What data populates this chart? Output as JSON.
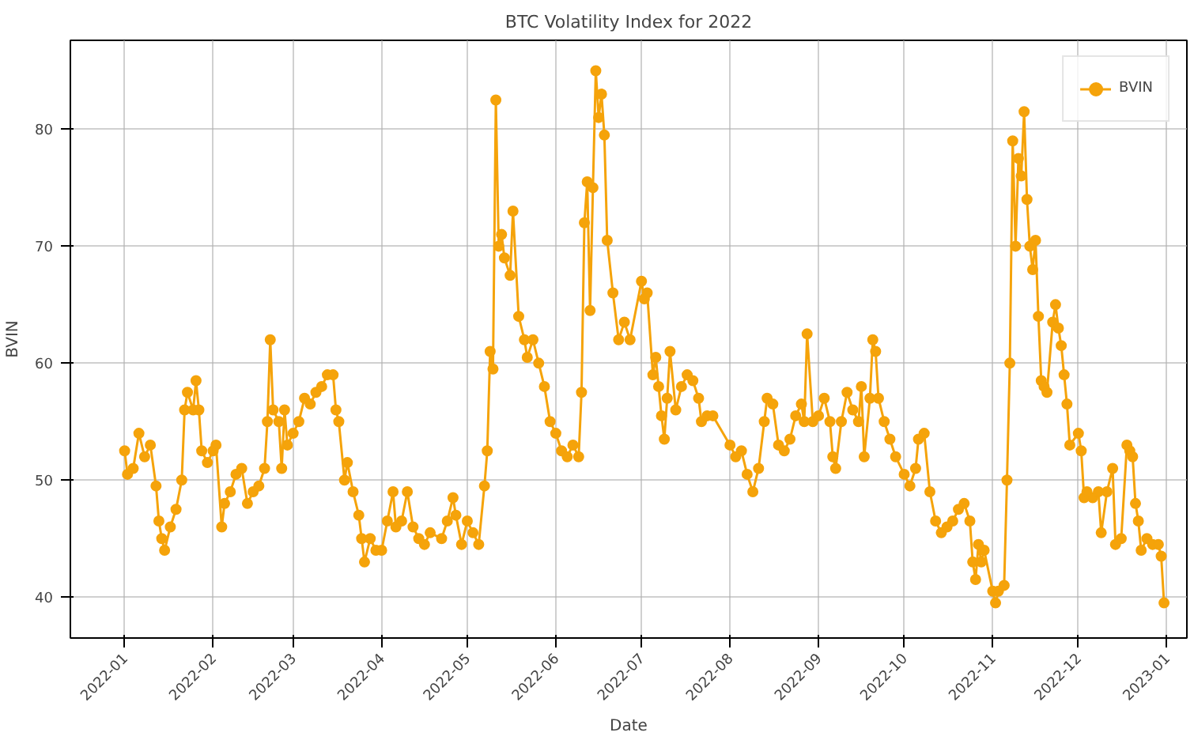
{
  "chart_data": {
    "type": "line",
    "title": "BTC Volatility Index for 2022",
    "xlabel": "Date",
    "ylabel": "BVIN",
    "xlim": [
      "2021-12-13",
      "2023-01-08"
    ],
    "xticks": [
      {
        "value": "2022-01-01",
        "label": "2022-01"
      },
      {
        "value": "2022-02-01",
        "label": "2022-02"
      },
      {
        "value": "2022-03-01",
        "label": "2022-03"
      },
      {
        "value": "2022-04-01",
        "label": "2022-04"
      },
      {
        "value": "2022-05-01",
        "label": "2022-05"
      },
      {
        "value": "2022-06-01",
        "label": "2022-06"
      },
      {
        "value": "2022-07-01",
        "label": "2022-07"
      },
      {
        "value": "2022-08-01",
        "label": "2022-08"
      },
      {
        "value": "2022-09-01",
        "label": "2022-09"
      },
      {
        "value": "2022-10-01",
        "label": "2022-10"
      },
      {
        "value": "2022-11-01",
        "label": "2022-11"
      },
      {
        "value": "2022-12-01",
        "label": "2022-12"
      },
      {
        "value": "2023-01-01",
        "label": "2023-01"
      }
    ],
    "ylim": [
      36.5,
      87.6
    ],
    "yticks": [
      40,
      50,
      60,
      70,
      80
    ],
    "grid": true,
    "legend": "top right",
    "marker": "circle",
    "line_style": "solid",
    "series": [
      {
        "name": "BVIN",
        "color": "#f5a30a",
        "x": [
          "2022-01-01",
          "2022-01-02",
          "2022-01-04",
          "2022-01-06",
          "2022-01-08",
          "2022-01-10",
          "2022-01-12",
          "2022-01-13",
          "2022-01-14",
          "2022-01-15",
          "2022-01-17",
          "2022-01-19",
          "2022-01-21",
          "2022-01-22",
          "2022-01-23",
          "2022-01-25",
          "2022-01-26",
          "2022-01-27",
          "2022-01-28",
          "2022-01-30",
          "2022-02-01",
          "2022-02-02",
          "2022-02-04",
          "2022-02-05",
          "2022-02-07",
          "2022-02-09",
          "2022-02-11",
          "2022-02-13",
          "2022-02-15",
          "2022-02-17",
          "2022-02-19",
          "2022-02-20",
          "2022-02-21",
          "2022-02-22",
          "2022-02-24",
          "2022-02-25",
          "2022-02-26",
          "2022-02-27",
          "2022-03-01",
          "2022-03-03",
          "2022-03-05",
          "2022-03-07",
          "2022-03-09",
          "2022-03-11",
          "2022-03-13",
          "2022-03-15",
          "2022-03-16",
          "2022-03-17",
          "2022-03-19",
          "2022-03-20",
          "2022-03-22",
          "2022-03-24",
          "2022-03-25",
          "2022-03-26",
          "2022-03-28",
          "2022-03-30",
          "2022-04-01",
          "2022-04-03",
          "2022-04-05",
          "2022-04-06",
          "2022-04-08",
          "2022-04-10",
          "2022-04-12",
          "2022-04-14",
          "2022-04-16",
          "2022-04-18",
          "2022-04-22",
          "2022-04-24",
          "2022-04-26",
          "2022-04-27",
          "2022-04-29",
          "2022-05-01",
          "2022-05-03",
          "2022-05-05",
          "2022-05-07",
          "2022-05-08",
          "2022-05-09",
          "2022-05-10",
          "2022-05-11",
          "2022-05-12",
          "2022-05-13",
          "2022-05-14",
          "2022-05-16",
          "2022-05-17",
          "2022-05-19",
          "2022-05-21",
          "2022-05-22",
          "2022-05-24",
          "2022-05-26",
          "2022-05-28",
          "2022-05-30",
          "2022-06-01",
          "2022-06-03",
          "2022-06-05",
          "2022-06-07",
          "2022-06-09",
          "2022-06-10",
          "2022-06-11",
          "2022-06-12",
          "2022-06-13",
          "2022-06-14",
          "2022-06-15",
          "2022-06-16",
          "2022-06-17",
          "2022-06-18",
          "2022-06-19",
          "2022-06-21",
          "2022-06-23",
          "2022-06-25",
          "2022-06-27",
          "2022-07-01",
          "2022-07-02",
          "2022-07-03",
          "2022-07-05",
          "2022-07-06",
          "2022-07-07",
          "2022-07-08",
          "2022-07-09",
          "2022-07-10",
          "2022-07-11",
          "2022-07-13",
          "2022-07-15",
          "2022-07-17",
          "2022-07-19",
          "2022-07-21",
          "2022-07-22",
          "2022-07-24",
          "2022-07-26",
          "2022-08-01",
          "2022-08-03",
          "2022-08-05",
          "2022-08-07",
          "2022-08-09",
          "2022-08-11",
          "2022-08-13",
          "2022-08-14",
          "2022-08-16",
          "2022-08-18",
          "2022-08-20",
          "2022-08-22",
          "2022-08-24",
          "2022-08-26",
          "2022-08-27",
          "2022-08-28",
          "2022-08-30",
          "2022-09-01",
          "2022-09-03",
          "2022-09-05",
          "2022-09-06",
          "2022-09-07",
          "2022-09-09",
          "2022-09-11",
          "2022-09-13",
          "2022-09-15",
          "2022-09-16",
          "2022-09-17",
          "2022-09-19",
          "2022-09-20",
          "2022-09-21",
          "2022-09-22",
          "2022-09-24",
          "2022-09-26",
          "2022-09-28",
          "2022-10-01",
          "2022-10-03",
          "2022-10-05",
          "2022-10-06",
          "2022-10-08",
          "2022-10-10",
          "2022-10-12",
          "2022-10-14",
          "2022-10-16",
          "2022-10-18",
          "2022-10-20",
          "2022-10-22",
          "2022-10-24",
          "2022-10-25",
          "2022-10-26",
          "2022-10-27",
          "2022-10-28",
          "2022-10-29",
          "2022-11-01",
          "2022-11-02",
          "2022-11-03",
          "2022-11-05",
          "2022-11-06",
          "2022-11-07",
          "2022-11-08",
          "2022-11-09",
          "2022-11-10",
          "2022-11-11",
          "2022-11-12",
          "2022-11-13",
          "2022-11-14",
          "2022-11-15",
          "2022-11-16",
          "2022-11-17",
          "2022-11-18",
          "2022-11-19",
          "2022-11-20",
          "2022-11-22",
          "2022-11-23",
          "2022-11-24",
          "2022-11-25",
          "2022-11-26",
          "2022-11-27",
          "2022-11-28",
          "2022-12-01",
          "2022-12-02",
          "2022-12-03",
          "2022-12-04",
          "2022-12-06",
          "2022-12-08",
          "2022-12-09",
          "2022-12-11",
          "2022-12-13",
          "2022-12-14",
          "2022-12-16",
          "2022-12-18",
          "2022-12-19",
          "2022-12-20",
          "2022-12-21",
          "2022-12-22",
          "2022-12-23",
          "2022-12-25",
          "2022-12-27",
          "2022-12-29",
          "2022-12-30",
          "2022-12-31"
        ],
        "values": [
          52.5,
          50.5,
          51,
          54,
          52,
          53,
          49.5,
          46.5,
          45,
          44,
          46,
          47.5,
          50,
          56,
          57.5,
          56,
          58.5,
          56,
          52.5,
          51.5,
          52.5,
          53,
          46,
          48,
          49,
          50.5,
          51,
          48,
          49,
          49.5,
          51,
          55,
          62,
          56,
          55,
          51,
          56,
          53,
          54,
          55,
          57,
          56.5,
          57.5,
          58,
          59,
          59,
          56,
          55,
          50,
          51.5,
          49,
          47,
          45,
          43,
          45,
          44,
          44,
          46.5,
          49,
          46,
          46.5,
          49,
          46,
          45,
          44.5,
          45.5,
          45,
          46.5,
          48.5,
          47,
          44.5,
          46.5,
          45.5,
          44.5,
          49.5,
          52.5,
          61,
          59.5,
          82.5,
          70,
          71,
          69,
          67.5,
          73,
          64,
          62,
          60.5,
          62,
          60,
          58,
          55,
          54,
          52.5,
          52,
          53,
          52,
          57.5,
          72,
          75.5,
          64.5,
          75,
          85,
          81,
          83,
          79.5,
          70.5,
          66,
          62,
          63.5,
          62,
          67,
          65.5,
          66,
          59,
          60.5,
          58,
          55.5,
          53.5,
          57,
          61,
          56,
          58,
          59,
          58.5,
          57,
          55,
          55.5,
          55.5,
          53,
          52,
          52.5,
          50.5,
          49,
          51,
          55,
          57,
          56.5,
          53,
          52.5,
          53.5,
          55.5,
          56.5,
          55,
          62.5,
          55,
          55.5,
          57,
          55,
          52,
          51,
          55,
          57.5,
          56,
          55,
          58,
          52,
          57,
          62,
          61,
          57,
          55,
          53.5,
          52,
          50.5,
          49.5,
          51,
          53.5,
          54,
          49,
          46.5,
          45.5,
          46,
          46.5,
          47.5,
          48,
          46.5,
          43,
          41.5,
          44.5,
          43,
          44,
          40.5,
          39.5,
          40.5,
          41,
          50,
          60,
          79,
          70,
          77.5,
          76,
          81.5,
          74,
          70,
          68,
          70.5,
          64,
          58.5,
          58,
          57.5,
          63.5,
          65,
          63,
          61.5,
          59,
          56.5,
          53,
          54,
          52.5,
          48.5,
          49,
          48.5,
          49,
          45.5,
          49,
          51,
          44.5,
          45,
          53,
          52.5,
          52,
          48,
          46.5,
          44,
          45,
          44.5,
          44.5,
          43.5,
          39.5
        ]
      }
    ]
  }
}
